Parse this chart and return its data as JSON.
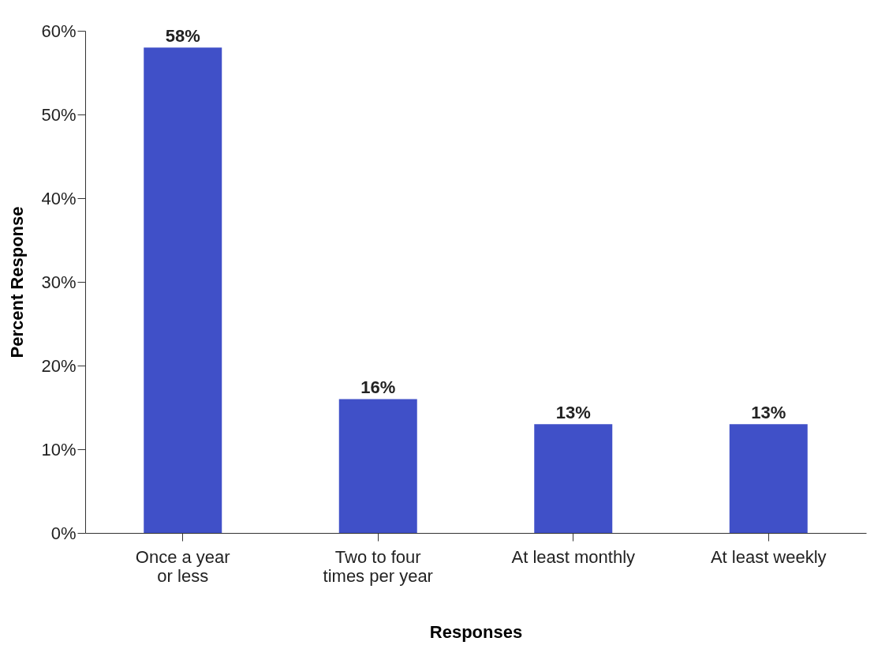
{
  "chart_data": {
    "type": "bar",
    "categories": [
      "Once a year or less",
      "Two to four times per year",
      "At least monthly",
      "At least weekly"
    ],
    "values": [
      58,
      16,
      13,
      13
    ],
    "value_labels": [
      "58%",
      "16%",
      "13%",
      "13%"
    ],
    "color": "#4050c8",
    "xlabel": "Responses",
    "ylabel": "Percent Response",
    "ylim": [
      0,
      60
    ],
    "yticks": [
      {
        "value": 0,
        "label": "0%"
      },
      {
        "value": 10,
        "label": "10%"
      },
      {
        "value": 20,
        "label": "20%"
      },
      {
        "value": 30,
        "label": "30%"
      },
      {
        "value": 40,
        "label": "40%"
      },
      {
        "value": 50,
        "label": "50%"
      },
      {
        "value": 60,
        "label": "60%"
      }
    ],
    "grid": false
  }
}
